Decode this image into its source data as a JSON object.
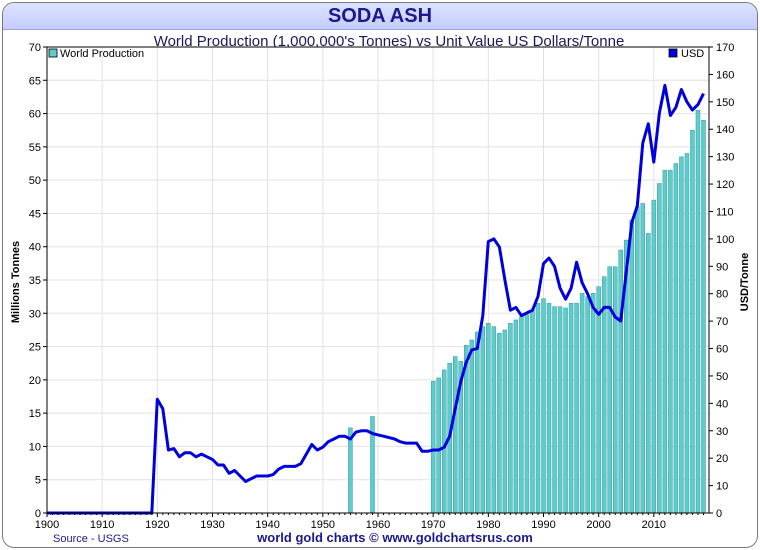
{
  "title": "SODA ASH",
  "chart_data": {
    "type": "bar+line",
    "subtitle": "World Production (1,000,000's Tonnes) vs Unit Value US Dollars/Tonne",
    "ylabel_left": "Millions Tonnes",
    "ylabel_right": "USD/Tonne",
    "ylim_left": [
      0,
      70
    ],
    "ylim_right": [
      0,
      170
    ],
    "xlim": [
      1900,
      2020
    ],
    "x_ticks": [
      1900,
      1910,
      1920,
      1930,
      1940,
      1950,
      1960,
      1970,
      1980,
      1990,
      2000,
      2010
    ],
    "y_ticks_left": [
      0,
      5,
      10,
      15,
      20,
      25,
      30,
      35,
      40,
      45,
      50,
      55,
      60,
      65,
      70
    ],
    "y_ticks_right": [
      0,
      10,
      20,
      30,
      40,
      50,
      60,
      70,
      80,
      90,
      100,
      110,
      120,
      130,
      140,
      150,
      160,
      170
    ],
    "grid": true,
    "legend_left": "World Production",
    "legend_right": "USD",
    "series": [
      {
        "name": "World Production",
        "type": "bar",
        "axis": "left",
        "color": "#5ccccc",
        "x": [
          1955,
          1959,
          1970,
          1971,
          1972,
          1973,
          1974,
          1975,
          1976,
          1977,
          1978,
          1979,
          1980,
          1981,
          1982,
          1983,
          1984,
          1985,
          1986,
          1987,
          1988,
          1989,
          1990,
          1991,
          1992,
          1993,
          1994,
          1995,
          1996,
          1997,
          1998,
          1999,
          2000,
          2001,
          2002,
          2003,
          2004,
          2005,
          2006,
          2007,
          2008,
          2009,
          2010,
          2011,
          2012,
          2013,
          2014,
          2015,
          2016,
          2017,
          2018,
          2019
        ],
        "values": [
          12.8,
          14.5,
          19.8,
          20.3,
          21.5,
          22.5,
          23.5,
          22.8,
          25.2,
          26.0,
          27.2,
          28.0,
          28.5,
          28.0,
          27.0,
          27.5,
          28.5,
          29.0,
          29.5,
          29.8,
          30.5,
          31.5,
          32.2,
          31.5,
          31.0,
          31.0,
          30.8,
          31.5,
          31.5,
          33.0,
          32.5,
          33.0,
          34.0,
          35.5,
          37.0,
          37.0,
          39.5,
          41.0,
          44.0,
          46.0,
          46.5,
          42.0,
          47.0,
          49.5,
          51.5,
          51.5,
          52.5,
          53.5,
          54.0,
          57.5,
          60.5,
          59.0
        ]
      },
      {
        "name": "USD",
        "type": "line",
        "axis": "right",
        "color": "#0000dd",
        "x": [
          1900,
          1919,
          1920,
          1921,
          1922,
          1923,
          1924,
          1925,
          1926,
          1927,
          1928,
          1929,
          1930,
          1931,
          1932,
          1933,
          1934,
          1935,
          1936,
          1937,
          1938,
          1939,
          1940,
          1941,
          1942,
          1943,
          1944,
          1945,
          1946,
          1947,
          1948,
          1949,
          1950,
          1951,
          1952,
          1953,
          1954,
          1955,
          1956,
          1957,
          1958,
          1959,
          1960,
          1961,
          1962,
          1963,
          1964,
          1965,
          1966,
          1967,
          1968,
          1969,
          1970,
          1971,
          1972,
          1973,
          1974,
          1975,
          1976,
          1977,
          1978,
          1979,
          1980,
          1981,
          1982,
          1983,
          1984,
          1985,
          1986,
          1987,
          1988,
          1989,
          1990,
          1991,
          1992,
          1993,
          1994,
          1995,
          1996,
          1997,
          1998,
          1999,
          2000,
          2001,
          2002,
          2003,
          2004,
          2005,
          2006,
          2007,
          2008,
          2009,
          2010,
          2011,
          2012,
          2013,
          2014,
          2015,
          2016,
          2017,
          2018,
          2019
        ],
        "values": [
          0,
          0,
          41.5,
          38.0,
          23.0,
          23.5,
          20.5,
          22.0,
          22.0,
          20.5,
          21.5,
          20.5,
          19.5,
          17.5,
          17.5,
          14.5,
          15.5,
          13.5,
          11.5,
          12.5,
          13.5,
          13.5,
          13.5,
          14.0,
          16.0,
          17.0,
          17.0,
          17.0,
          18.0,
          21.5,
          25.0,
          23.0,
          24.0,
          26.0,
          27.0,
          28.0,
          28.0,
          27.0,
          29.5,
          30.0,
          30.0,
          29.0,
          28.5,
          28.0,
          27.5,
          27.0,
          26.0,
          25.5,
          25.5,
          25.5,
          22.5,
          22.5,
          23.0,
          23.0,
          24.0,
          28.0,
          38.0,
          48.0,
          55.0,
          59.5,
          60.0,
          72.0,
          99.0,
          100.0,
          97.0,
          85.0,
          74.0,
          75.0,
          72.0,
          73.0,
          74.0,
          79.0,
          91.0,
          93.0,
          90.0,
          82.0,
          78.0,
          82.0,
          91.5,
          84.0,
          80.0,
          75.0,
          72.5,
          75.0,
          75.0,
          71.5,
          70.0,
          88.0,
          106.0,
          112.0,
          135.0,
          142.0,
          128.0,
          146.0,
          156.0,
          145.0,
          148.0,
          154.5,
          150.0,
          147.0,
          149.0,
          153.0
        ]
      }
    ],
    "source": "Source - USGS",
    "footer": "world gold charts © www.goldchartsrus.com"
  }
}
